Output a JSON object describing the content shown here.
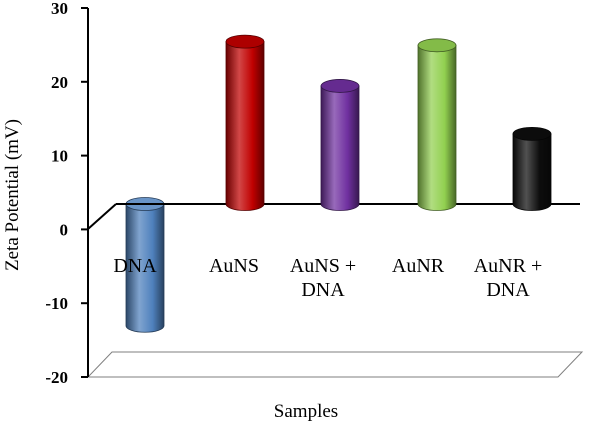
{
  "chart_data": {
    "type": "bar",
    "title": "",
    "xlabel": "Samples",
    "ylabel": "Zeta Potential (mV)",
    "ylim": [
      -20,
      30
    ],
    "yticks": [
      30,
      20,
      10,
      0,
      -10,
      -20
    ],
    "ytick_labels": [
      "30",
      "20",
      "10",
      "0",
      "-10",
      "-20"
    ],
    "grid": false,
    "legend": "none",
    "categories": [
      {
        "lines": [
          "DNA"
        ]
      },
      {
        "lines": [
          "AuNS"
        ]
      },
      {
        "lines": [
          "AuNS +",
          "DNA"
        ]
      },
      {
        "lines": [
          "AuNR"
        ]
      },
      {
        "lines": [
          "AuNR +",
          "DNA"
        ]
      }
    ],
    "values": [
      -16.5,
      22,
      16,
      21.5,
      9.5
    ],
    "colors": [
      "#4f81bd",
      "#c00000",
      "#7030a0",
      "#92d050",
      "#0d0d0d"
    ]
  }
}
